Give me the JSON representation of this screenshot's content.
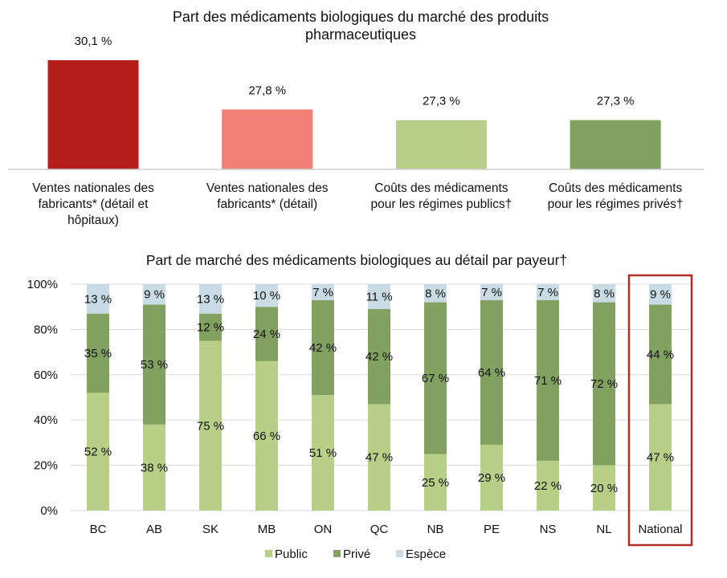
{
  "chart_data": [
    {
      "type": "bar",
      "title": "Part des médicaments biologiques du marché des produits pharmaceutiques",
      "title_lines": [
        "Part des médicaments biologiques du marché des produits",
        "pharmaceutiques"
      ],
      "categories": [
        [
          "Ventes nationales des",
          "fabricants* (détail et",
          "hôpitaux)"
        ],
        [
          "Ventes nationales des",
          "fabricants* (détail)"
        ],
        [
          "Coûts des médicaments",
          "pour les régimes publics†"
        ],
        [
          "Coûts des médicaments",
          "pour les régimes privés†"
        ]
      ],
      "values": [
        30.1,
        27.8,
        27.3,
        27.3
      ],
      "data_labels": [
        "30,1 %",
        "27,8 %",
        "27,3 %",
        "27,3 %"
      ],
      "colors": [
        "#B41F1B",
        "#F08078",
        "#B8CF87",
        "#82A060"
      ],
      "ylim": [
        25,
        30.1
      ],
      "grid": false
    },
    {
      "type": "bar",
      "stacked": true,
      "title": "Part de marché des médicaments biologiques au détail par payeur†",
      "categories": [
        "BC",
        "AB",
        "SK",
        "MB",
        "ON",
        "QC",
        "NB",
        "PE",
        "NS",
        "NL",
        "National"
      ],
      "highlighted_category": "National",
      "highlight_color": "#B42A22",
      "yticks": [
        "0%",
        "20%",
        "40%",
        "60%",
        "80%",
        "100%"
      ],
      "ylim": [
        0,
        100
      ],
      "grid": true,
      "legend_position": "bottom",
      "series": [
        {
          "name": "Public",
          "color": "#B8CF87",
          "values": [
            52,
            38,
            75,
            66,
            51,
            47,
            25,
            29,
            22,
            20,
            47
          ]
        },
        {
          "name": "Privé",
          "color": "#82A060",
          "values": [
            35,
            53,
            12,
            24,
            42,
            42,
            67,
            64,
            71,
            72,
            44
          ]
        },
        {
          "name": "Espèce",
          "color": "#C9DCE6",
          "values": [
            13,
            9,
            13,
            10,
            7,
            11,
            8,
            7,
            7,
            8,
            9
          ]
        }
      ]
    }
  ]
}
